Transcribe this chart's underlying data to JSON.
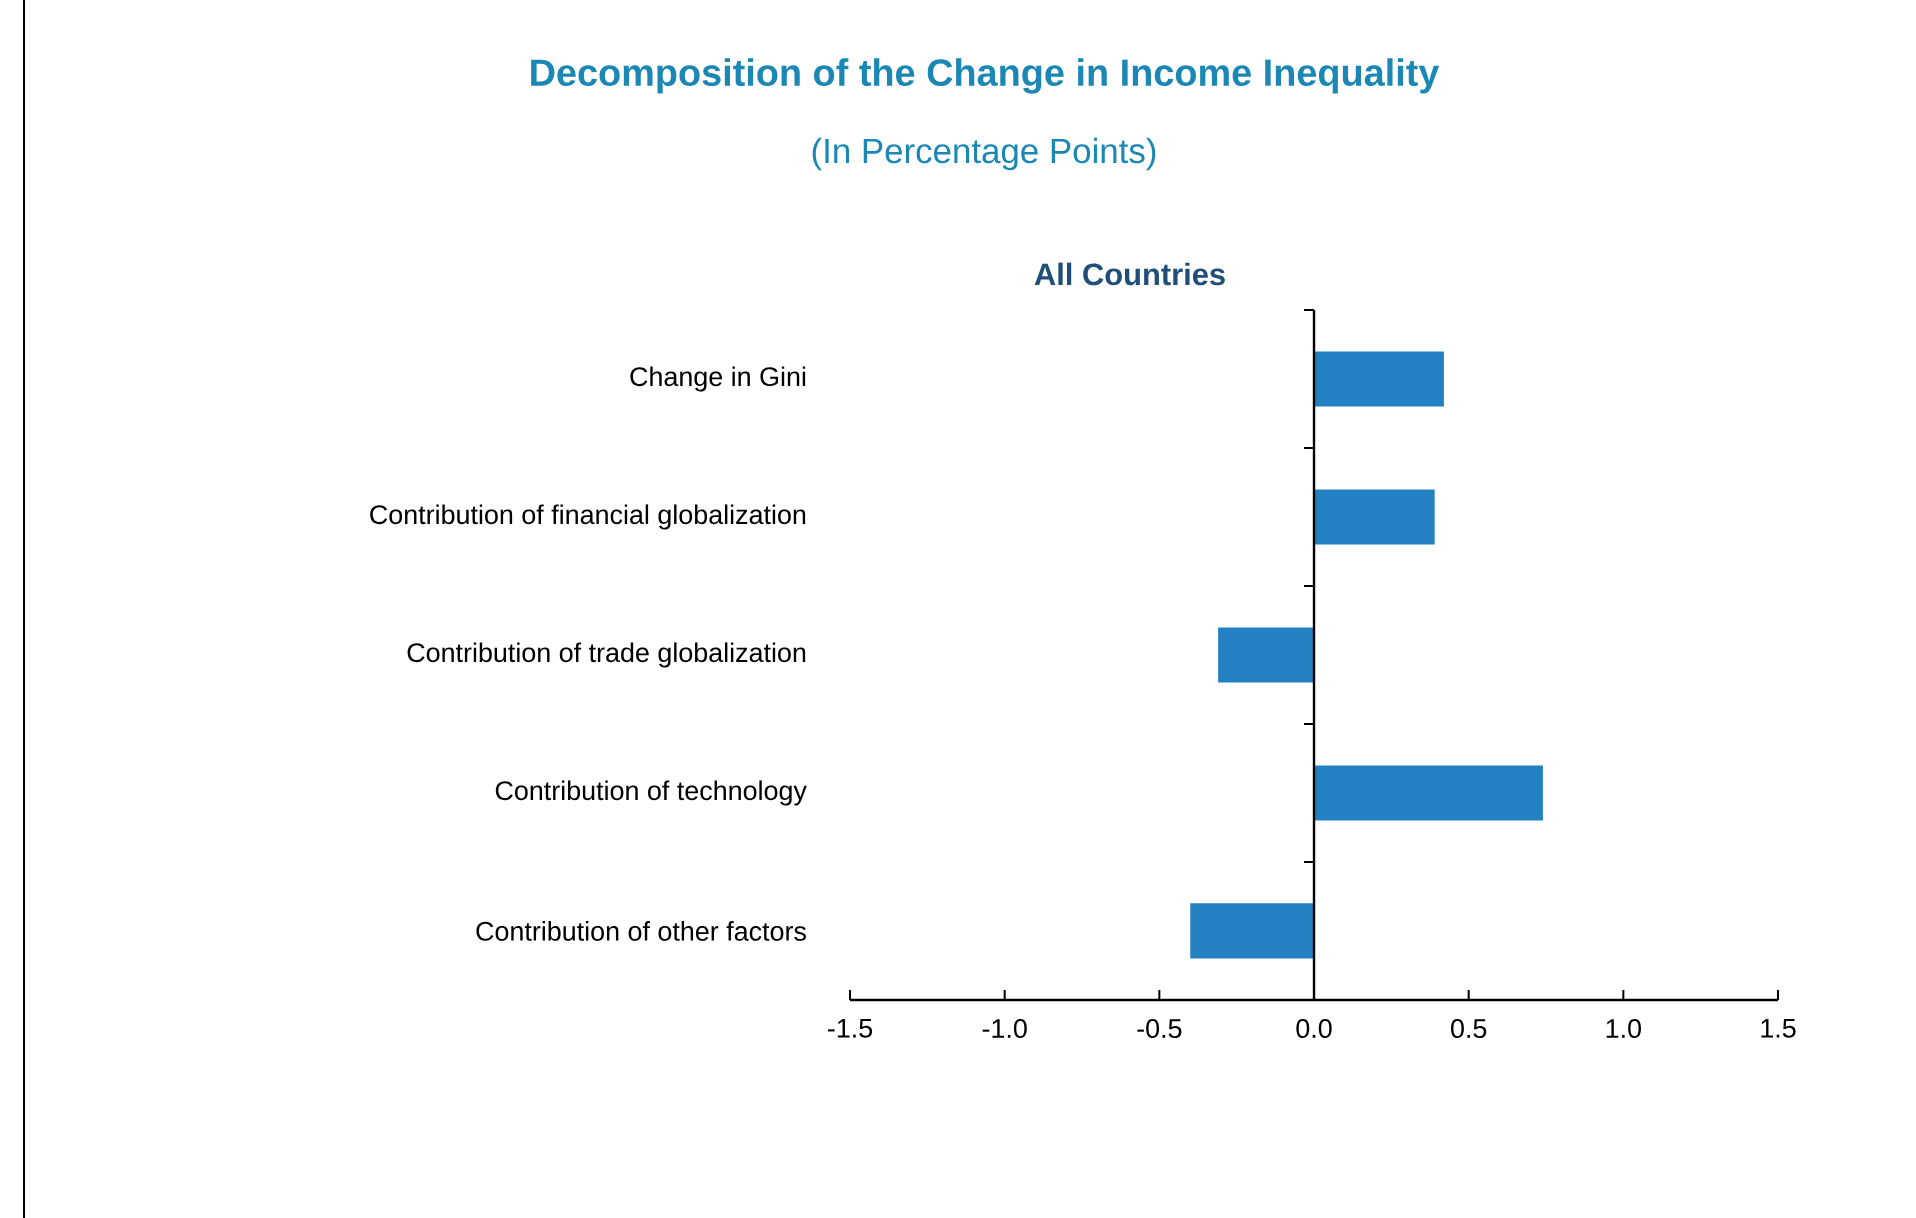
{
  "chart_data": {
    "type": "bar",
    "orientation": "horizontal",
    "title": "Decomposition of the Change in Income Inequality",
    "subtitle": "(In Percentage Points)",
    "annotations": [
      "All Countries"
    ],
    "categories": [
      "Change in Gini",
      "Contribution of financial globalization",
      "Contribution of trade globalization",
      "Contribution of technology",
      "Contribution of other factors"
    ],
    "values": [
      0.42,
      0.39,
      -0.31,
      0.74,
      -0.4
    ],
    "color": "#2381c2",
    "xlim": [
      -1.5,
      1.5
    ],
    "xticks": [
      -1.5,
      {
        "value": -1.0,
        "label": "-1.0"
      },
      -0.5,
      {
        "value": 0,
        "label": "0.0"
      },
      0.5,
      {
        "value": 1.0,
        "label": "1.0"
      },
      1.5
    ]
  }
}
